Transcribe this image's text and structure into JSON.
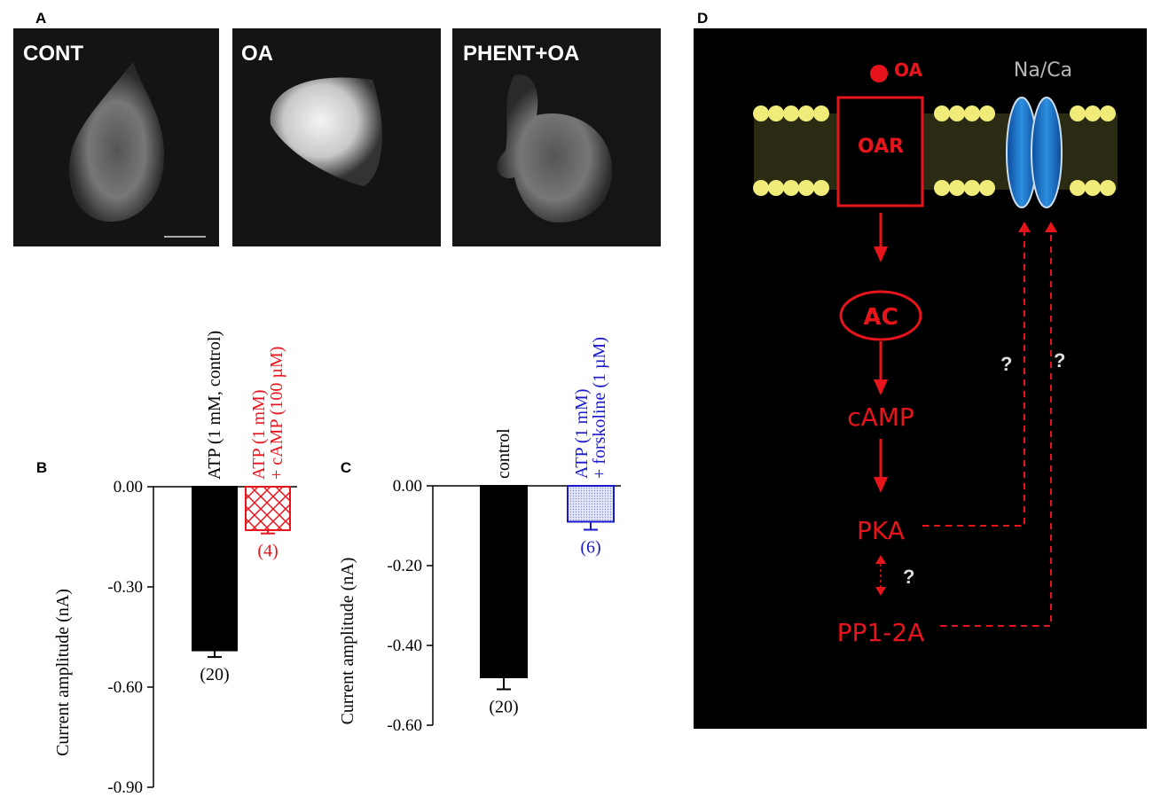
{
  "panel_a": {
    "label": "A",
    "images": [
      "CONT",
      "OA",
      "PHENT+OA"
    ]
  },
  "chart_data": [
    {
      "type": "bar",
      "panel_label": "B",
      "y_label": "Current amplitude (nA)",
      "categories": [
        [
          "ATP (1 mM, control)"
        ],
        [
          "ATP (1 mM)",
          "+ cAMP (100 µM)"
        ]
      ],
      "values": [
        -0.49,
        -0.13
      ],
      "errors": [
        0.02,
        0.01
      ],
      "annotations": [
        "(20)",
        "(4)"
      ],
      "colors": [
        "#000000",
        "#e8141b"
      ],
      "fills": [
        "solid",
        "hatch"
      ],
      "ylim": [
        -0.9,
        0
      ],
      "yticks": [
        {
          "value": 0,
          "label": "0.00"
        },
        {
          "value": -0.3,
          "label": "-0.30"
        },
        {
          "value": -0.6,
          "label": "-0.60"
        },
        {
          "value": -0.9,
          "label": "-0.90"
        }
      ]
    },
    {
      "type": "bar",
      "panel_label": "C",
      "y_label": "Current amplitude (nA)",
      "categories": [
        [
          "control"
        ],
        [
          "ATP (1 mM)",
          "+ forskoline (1 µM)"
        ]
      ],
      "values": [
        -0.48,
        -0.09
      ],
      "errors": [
        0.03,
        0.02
      ],
      "annotations": [
        "(20)",
        "(6)"
      ],
      "colors": [
        "#000000",
        "#1a1acc"
      ],
      "fills": [
        "solid",
        "dots"
      ],
      "ylim": [
        -0.6,
        0
      ],
      "yticks": [
        {
          "value": 0,
          "label": "0.00"
        },
        {
          "value": -0.2,
          "label": "-0.20"
        },
        {
          "value": -0.4,
          "label": "-0.40"
        },
        {
          "value": -0.6,
          "label": "-0.60"
        }
      ]
    }
  ],
  "panel_d": {
    "label": "D",
    "ligand": "OA",
    "channel": "Na/Ca",
    "receptor": "OAR",
    "nodes": [
      "AC",
      "cAMP",
      "PKA",
      "PP1-2A"
    ],
    "unknowns": [
      "?",
      "?",
      "?"
    ]
  }
}
